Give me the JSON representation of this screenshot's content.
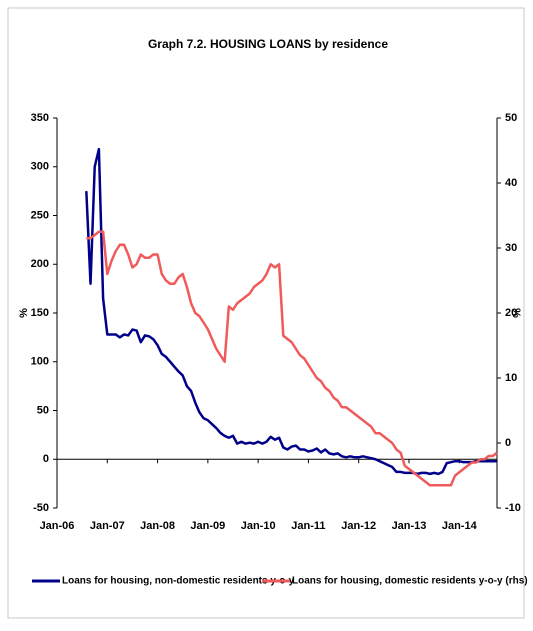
{
  "chart_data": {
    "type": "line",
    "title": "Graph 7.2. HOUSING LOANS by residence",
    "y_label": "%",
    "y2_label": "%",
    "categories": [
      "Jan-06",
      null,
      null,
      null,
      null,
      null,
      null,
      null,
      null,
      null,
      null,
      null,
      "Jan-07",
      null,
      null,
      null,
      null,
      null,
      null,
      null,
      null,
      null,
      null,
      null,
      "Jan-08",
      null,
      null,
      null,
      null,
      null,
      null,
      null,
      null,
      null,
      null,
      null,
      "Jan-09",
      null,
      null,
      null,
      null,
      null,
      null,
      null,
      null,
      null,
      null,
      null,
      "Jan-10",
      null,
      null,
      null,
      null,
      null,
      null,
      null,
      null,
      null,
      null,
      null,
      "Jan-11",
      null,
      null,
      null,
      null,
      null,
      null,
      null,
      null,
      null,
      null,
      null,
      "Jan-12",
      null,
      null,
      null,
      null,
      null,
      null,
      null,
      null,
      null,
      null,
      null,
      "Jan-13",
      null,
      null,
      null,
      null,
      null,
      null,
      null,
      null,
      null,
      null,
      null,
      "Jan-14",
      null,
      null,
      null,
      null,
      null,
      null,
      null,
      null,
      null
    ],
    "ylim": [
      -50,
      350
    ],
    "yticks": [
      -50,
      0,
      50,
      100,
      150,
      200,
      250,
      300,
      350
    ],
    "y2lim": [
      -10,
      50
    ],
    "y2ticks": [
      -10,
      0,
      10,
      20,
      30,
      40,
      50
    ],
    "legend": "bottom",
    "series": [
      {
        "name": "Loans for housing, non-domestic residents y-o-y",
        "color": "#00008b",
        "values": [
          null,
          null,
          null,
          null,
          null,
          null,
          null,
          275,
          180,
          300,
          318,
          165,
          128,
          128,
          128,
          125,
          128,
          127,
          133,
          132,
          120,
          127,
          126,
          123,
          117,
          108,
          105,
          100,
          95,
          90,
          86,
          75,
          70,
          58,
          48,
          42,
          40,
          36,
          32,
          27,
          24,
          22,
          24,
          16,
          18,
          16,
          17,
          16,
          18,
          16,
          18,
          23,
          20,
          22,
          12,
          10,
          13,
          14,
          10,
          10,
          8,
          9,
          11,
          7,
          10,
          6,
          5,
          6,
          3,
          2,
          3,
          2,
          2,
          3,
          2,
          1,
          0,
          -2,
          -4,
          -6,
          -8,
          -13,
          -13,
          -14,
          -14,
          -14,
          -15,
          -14,
          -14,
          -15,
          -14,
          -15,
          -13,
          -4,
          -3,
          -2,
          -2,
          -3,
          -3,
          -3,
          -2,
          -2,
          -2,
          -2,
          -2,
          -2
        ]
      },
      {
        "name": "Loans for housing, domestic residents y-o-y (rhs)",
        "color": "#f05a5a",
        "axis": "y2",
        "values": [
          null,
          null,
          null,
          null,
          null,
          null,
          null,
          31.5,
          31.5,
          32,
          32.5,
          32.5,
          26,
          28,
          29.5,
          30.5,
          30.5,
          29,
          27,
          27.5,
          29,
          28.5,
          28.5,
          29,
          29,
          26,
          25,
          24.5,
          24.5,
          25.5,
          26,
          24,
          21.5,
          20,
          19.5,
          18.5,
          17.5,
          16,
          14.5,
          13.5,
          12.5,
          21,
          20.5,
          21.5,
          22,
          22.5,
          23,
          24,
          24.5,
          25,
          26,
          27.5,
          27,
          27.5,
          16.5,
          16,
          15.5,
          14.5,
          13.5,
          13,
          12,
          11,
          10,
          9.5,
          8.5,
          8,
          7,
          6.5,
          5.5,
          5.5,
          5,
          4.5,
          4,
          3.5,
          3,
          2.5,
          1.5,
          1.5,
          1,
          0.5,
          0,
          -1,
          -1.5,
          -3.5,
          -4,
          -4.5,
          -5,
          -5.5,
          -6,
          -6.5,
          -6.5,
          -6.5,
          -6.5,
          -6.5,
          -6.5,
          -5,
          -4.5,
          -4,
          -3.5,
          -3,
          -3,
          -2.5,
          -2.5,
          -2,
          -2,
          -1.5
        ]
      }
    ]
  }
}
